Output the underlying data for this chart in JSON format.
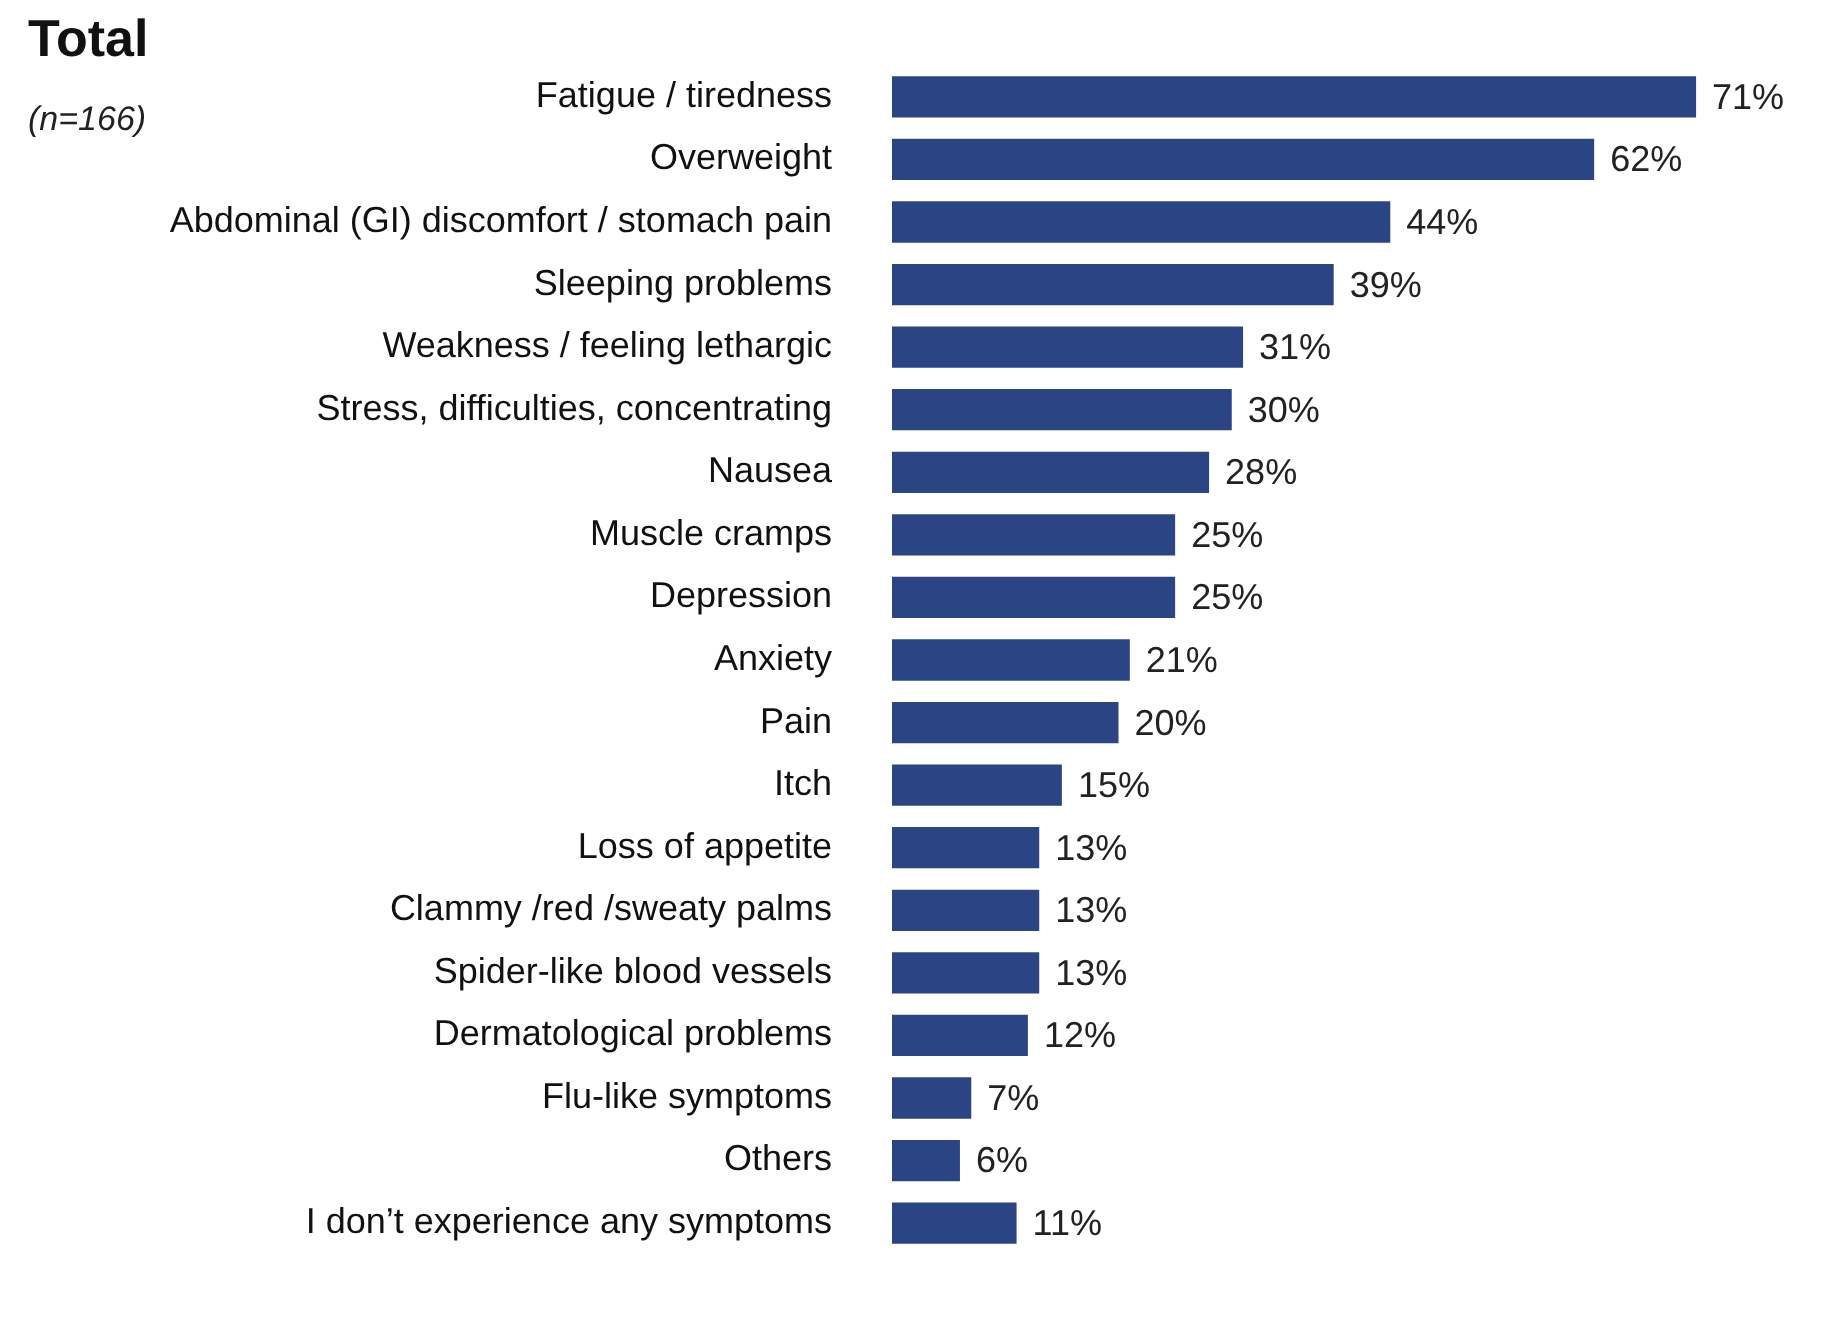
{
  "chart_data": {
    "type": "bar",
    "orientation": "horizontal",
    "title": "Total",
    "subtitle": "(n=166)",
    "categories": [
      "Fatigue / tiredness",
      "Overweight",
      "Abdominal (GI) discomfort / stomach pain",
      "Sleeping problems",
      "Weakness / feeling lethargic",
      "Stress, difficulties, concentrating",
      "Nausea",
      "Muscle cramps",
      "Depression",
      "Anxiety",
      "Pain",
      "Itch",
      "Loss of appetite",
      "Clammy /red /sweaty palms",
      "Spider-like blood vessels",
      "Dermatological problems",
      "Flu-like symptoms",
      "Others",
      "I don’t experience any symptoms"
    ],
    "values": [
      71,
      62,
      44,
      39,
      31,
      30,
      28,
      25,
      25,
      21,
      20,
      15,
      13,
      13,
      13,
      12,
      7,
      6,
      11
    ],
    "value_labels": [
      "71%",
      "62%",
      "44%",
      "39%",
      "31%",
      "30%",
      "28%",
      "25%",
      "25%",
      "21%",
      "20%",
      "15%",
      "13%",
      "13%",
      "13%",
      "12%",
      "7%",
      "6%",
      "11%"
    ],
    "color": "#2b4484",
    "grid": false,
    "tick_labels": "y"
  }
}
